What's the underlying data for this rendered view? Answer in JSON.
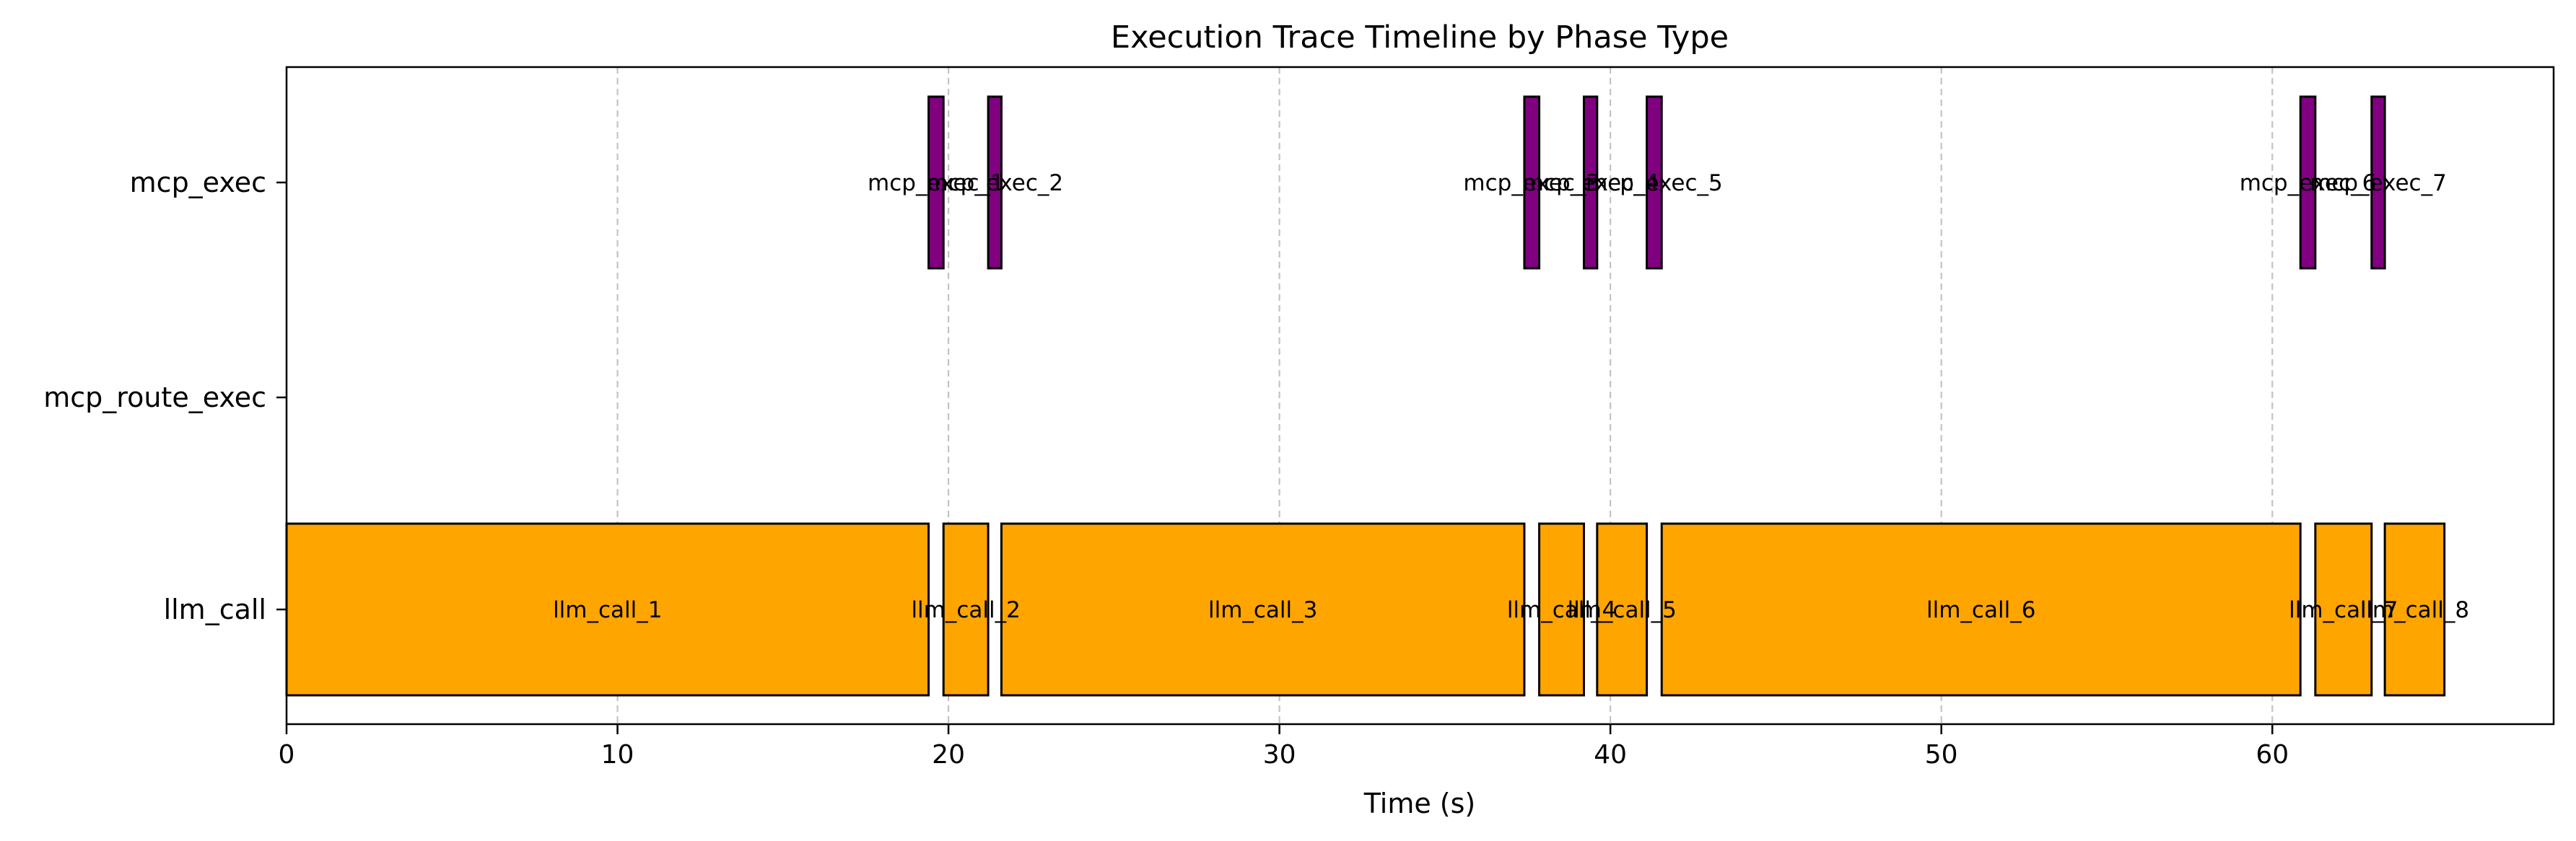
{
  "chart_data": {
    "type": "timeline",
    "title": "Execution Trace Timeline by Phase Type",
    "xlabel": "Time (s)",
    "xlim": [
      0,
      68.5
    ],
    "xticks": [
      0,
      10,
      20,
      30,
      40,
      50,
      60
    ],
    "categories": [
      "mcp_exec",
      "mcp_route_exec",
      "llm_call"
    ],
    "grid": "x-dashed",
    "colors": {
      "llm_call": "#FFA500",
      "mcp_exec": "#800080"
    },
    "segments": [
      {
        "phase": "llm_call",
        "label": "llm_call_1",
        "start": 0.0,
        "end": 19.4
      },
      {
        "phase": "llm_call",
        "label": "llm_call_2",
        "start": 19.85,
        "end": 21.2
      },
      {
        "phase": "llm_call",
        "label": "llm_call_3",
        "start": 21.6,
        "end": 37.4
      },
      {
        "phase": "llm_call",
        "label": "llm_call_4",
        "start": 37.85,
        "end": 39.2
      },
      {
        "phase": "llm_call",
        "label": "llm_call_5",
        "start": 39.6,
        "end": 41.1
      },
      {
        "phase": "llm_call",
        "label": "llm_call_6",
        "start": 41.55,
        "end": 60.85
      },
      {
        "phase": "llm_call",
        "label": "llm_call_7",
        "start": 61.3,
        "end": 63.0
      },
      {
        "phase": "llm_call",
        "label": "llm_call_8",
        "start": 63.4,
        "end": 65.2
      },
      {
        "phase": "mcp_exec",
        "label": "mcp_exec_1",
        "start": 19.4,
        "end": 19.85
      },
      {
        "phase": "mcp_exec",
        "label": "mcp_exec_2",
        "start": 21.2,
        "end": 21.6
      },
      {
        "phase": "mcp_exec",
        "label": "mcp_exec_3",
        "start": 37.4,
        "end": 37.85
      },
      {
        "phase": "mcp_exec",
        "label": "mcp_exec_4",
        "start": 39.2,
        "end": 39.6
      },
      {
        "phase": "mcp_exec",
        "label": "mcp_exec_5",
        "start": 41.1,
        "end": 41.55
      },
      {
        "phase": "mcp_exec",
        "label": "mcp_exec_6",
        "start": 60.85,
        "end": 61.3
      },
      {
        "phase": "mcp_exec",
        "label": "mcp_exec_7",
        "start": 63.0,
        "end": 63.4
      }
    ]
  }
}
